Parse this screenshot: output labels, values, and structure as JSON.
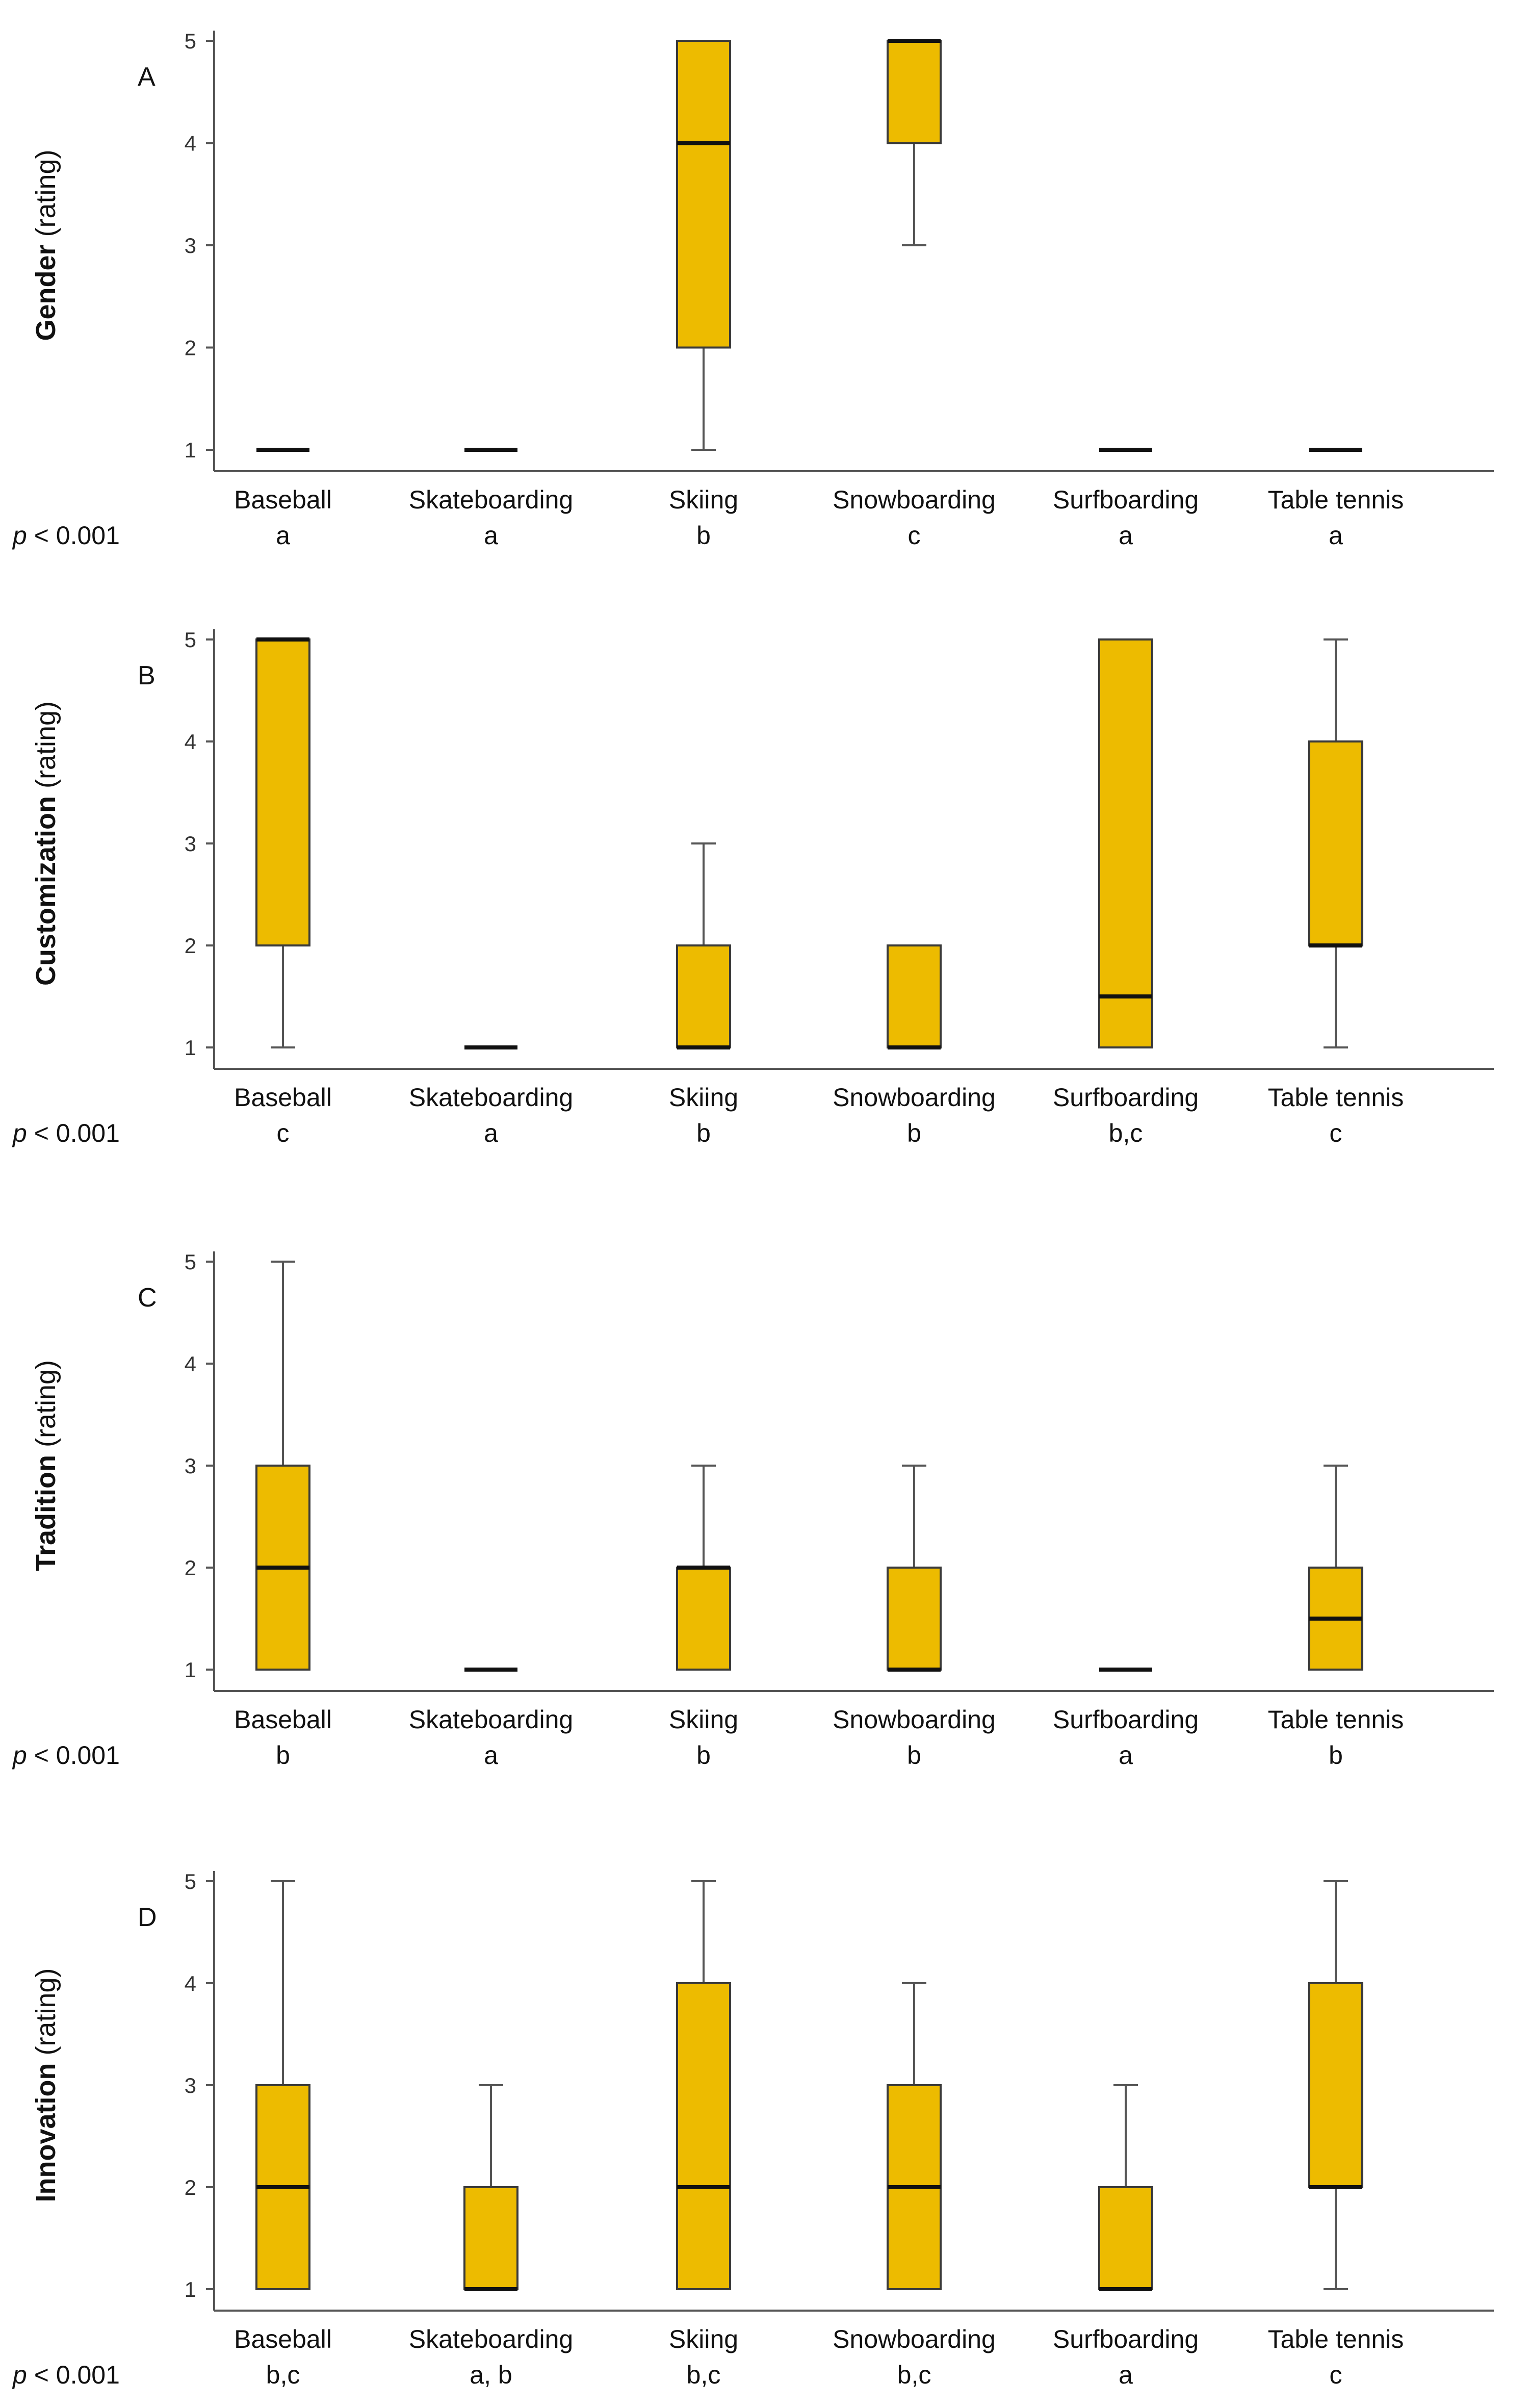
{
  "categories": [
    "Baseball",
    "Skateboarding",
    "Skiing",
    "Snowboarding",
    "Surfboarding",
    "Table tennis"
  ],
  "colors": {
    "box_fill": "#EDBB00",
    "box_stroke": "#3a3a3a",
    "median": "#111111",
    "axis": "#555555",
    "whisker": "#555555"
  },
  "chart_data": [
    {
      "type": "box",
      "panel_label": "A",
      "ylabel_bold": "Gender",
      "ylabel_rest": " (rating)",
      "ylim": [
        1,
        5
      ],
      "yticks": [
        "1",
        "2",
        "3",
        "4",
        "5"
      ],
      "categories": [
        "Baseball",
        "Skateboarding",
        "Skiing",
        "Snowboarding",
        "Surfboarding",
        "Table tennis"
      ],
      "p_prefix": "p",
      "p_value": " < 0.001",
      "groups": [
        "a",
        "a",
        "b",
        "c",
        "a",
        "a"
      ],
      "boxes": [
        {
          "min": 1,
          "q1": 1,
          "median": 1,
          "q3": 1,
          "max": 1
        },
        {
          "min": 1,
          "q1": 1,
          "median": 1,
          "q3": 1,
          "max": 1
        },
        {
          "min": 1,
          "q1": 2,
          "median": 4,
          "q3": 5,
          "max": 5
        },
        {
          "min": 3,
          "q1": 4,
          "median": 5,
          "q3": 5,
          "max": 5
        },
        {
          "min": 1,
          "q1": 1,
          "median": 1,
          "q3": 1,
          "max": 1
        },
        {
          "min": 1,
          "q1": 1,
          "median": 1,
          "q3": 1,
          "max": 1
        }
      ]
    },
    {
      "type": "box",
      "panel_label": "B",
      "ylabel_bold": "Customization",
      "ylabel_rest": " (rating)",
      "ylim": [
        1,
        5
      ],
      "yticks": [
        "1",
        "2",
        "3",
        "4",
        "5"
      ],
      "categories": [
        "Baseball",
        "Skateboarding",
        "Skiing",
        "Snowboarding",
        "Surfboarding",
        "Table tennis"
      ],
      "p_prefix": "p",
      "p_value": " < 0.001",
      "groups": [
        "c",
        "a",
        "b",
        "b",
        "b,c",
        "c"
      ],
      "boxes": [
        {
          "min": 1,
          "q1": 2,
          "median": 5,
          "q3": 5,
          "max": 5
        },
        {
          "min": 1,
          "q1": 1,
          "median": 1,
          "q3": 1,
          "max": 1
        },
        {
          "min": 1,
          "q1": 1,
          "median": 1,
          "q3": 2,
          "max": 3
        },
        {
          "min": 1,
          "q1": 1,
          "median": 1,
          "q3": 2,
          "max": 2
        },
        {
          "min": 1,
          "q1": 1,
          "median": 1.5,
          "q3": 5,
          "max": 5
        },
        {
          "min": 1,
          "q1": 2,
          "median": 2,
          "q3": 4,
          "max": 5
        }
      ]
    },
    {
      "type": "box",
      "panel_label": "C",
      "ylabel_bold": "Tradition",
      "ylabel_rest": " (rating)",
      "ylim": [
        1,
        5
      ],
      "yticks": [
        "1",
        "2",
        "3",
        "4",
        "5"
      ],
      "categories": [
        "Baseball",
        "Skateboarding",
        "Skiing",
        "Snowboarding",
        "Surfboarding",
        "Table tennis"
      ],
      "p_prefix": "p",
      "p_value": " < 0.001",
      "groups": [
        "b",
        "a",
        "b",
        "b",
        "a",
        "b"
      ],
      "boxes": [
        {
          "min": 1,
          "q1": 1,
          "median": 2,
          "q3": 3,
          "max": 5
        },
        {
          "min": 1,
          "q1": 1,
          "median": 1,
          "q3": 1,
          "max": 1
        },
        {
          "min": 1,
          "q1": 1,
          "median": 2,
          "q3": 2,
          "max": 3
        },
        {
          "min": 1,
          "q1": 1,
          "median": 1,
          "q3": 2,
          "max": 3
        },
        {
          "min": 1,
          "q1": 1,
          "median": 1,
          "q3": 1,
          "max": 1
        },
        {
          "min": 1,
          "q1": 1,
          "median": 1.5,
          "q3": 2,
          "max": 3
        }
      ]
    },
    {
      "type": "box",
      "panel_label": "D",
      "ylabel_bold": "Innovation",
      "ylabel_rest": " (rating)",
      "ylim": [
        1,
        5
      ],
      "yticks": [
        "1",
        "2",
        "3",
        "4",
        "5"
      ],
      "categories": [
        "Baseball",
        "Skateboarding",
        "Skiing",
        "Snowboarding",
        "Surfboarding",
        "Table tennis"
      ],
      "p_prefix": "p",
      "p_value": " < 0.001",
      "groups": [
        "b,c",
        "a, b",
        "b,c",
        "b,c",
        "a",
        "c"
      ],
      "boxes": [
        {
          "min": 1,
          "q1": 1,
          "median": 2,
          "q3": 3,
          "max": 5
        },
        {
          "min": 1,
          "q1": 1,
          "median": 1,
          "q3": 2,
          "max": 3
        },
        {
          "min": 1,
          "q1": 1,
          "median": 2,
          "q3": 4,
          "max": 5
        },
        {
          "min": 1,
          "q1": 1,
          "median": 2,
          "q3": 3,
          "max": 4
        },
        {
          "min": 1,
          "q1": 1,
          "median": 1,
          "q3": 2,
          "max": 3
        },
        {
          "min": 1,
          "q1": 2,
          "median": 2,
          "q3": 4,
          "max": 5
        }
      ]
    }
  ]
}
